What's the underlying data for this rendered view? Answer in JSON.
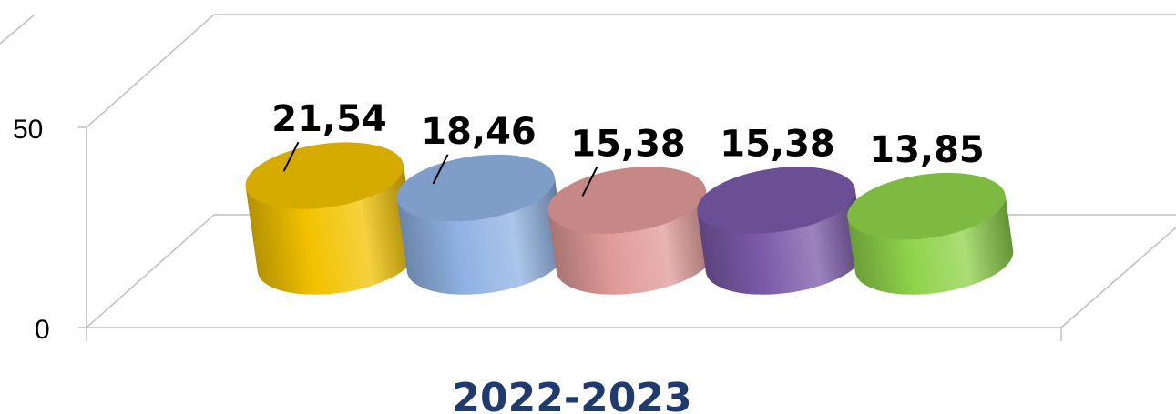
{
  "chart_data": {
    "type": "bar",
    "style": "3d-cylinder",
    "categories": [
      "2022-2023"
    ],
    "series": [
      {
        "value": 21.54,
        "label": "21,54",
        "color": "#f2c200"
      },
      {
        "value": 18.46,
        "label": "18,46",
        "color": "#8fb2e3"
      },
      {
        "value": 15.38,
        "label": "15,38",
        "color": "#e09a98"
      },
      {
        "value": 15.38,
        "label": "15,38",
        "color": "#7a5aa8"
      },
      {
        "value": 13.85,
        "label": "13,85",
        "color": "#8fd24a"
      }
    ],
    "yticks": [
      "0",
      "50"
    ],
    "ylim": [
      0,
      50
    ],
    "grid": true,
    "legend": "none"
  }
}
